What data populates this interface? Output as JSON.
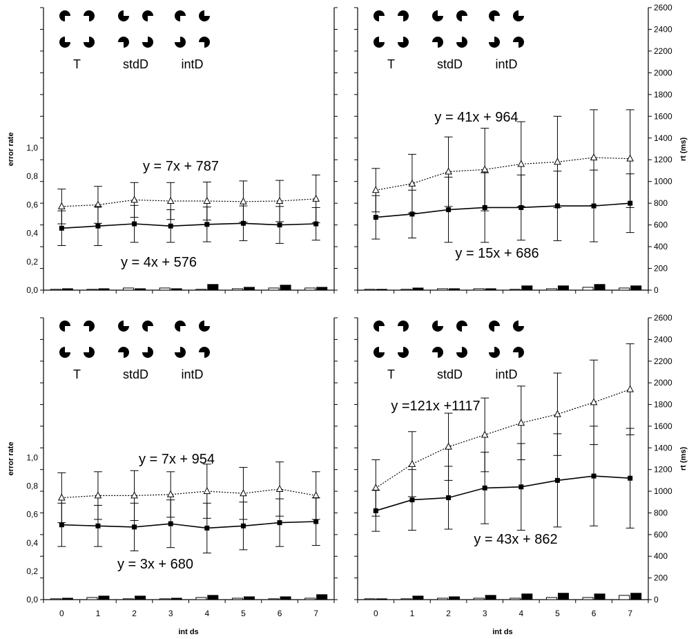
{
  "labels": {
    "error_rate": "error rate",
    "rt": "rt (ms)",
    "xlabel": "int ds"
  },
  "chart_data": [
    {
      "type": "line",
      "panel": "top-left",
      "x": [
        0,
        1,
        2,
        3,
        4,
        5,
        6,
        7
      ],
      "error_ylim": [
        0,
        1.0
      ],
      "error_ticks": [
        "0,0",
        "0,2",
        "0,4",
        "0,6",
        "0,8",
        "1,0"
      ],
      "rt_ylim": [
        0,
        2600
      ],
      "rt_ticks": [],
      "xlabel": "",
      "stimulus_labels": [
        "T",
        "stdD",
        "intD"
      ],
      "series": [
        {
          "kind": "rt-line",
          "style": "dotted",
          "marker": "open-triangle",
          "values": [
            770,
            785,
            830,
            820,
            820,
            815,
            820,
            840
          ],
          "error": [
            160,
            170,
            160,
            170,
            175,
            190,
            190,
            220
          ]
        },
        {
          "kind": "rt-line",
          "style": "solid",
          "marker": "filled-square",
          "values": [
            570,
            590,
            610,
            590,
            605,
            615,
            600,
            610
          ],
          "error": [
            160,
            180,
            170,
            150,
            160,
            160,
            170,
            150
          ]
        },
        {
          "kind": "error-bar",
          "fill": "open",
          "values": [
            0.005,
            0.005,
            0.015,
            0.015,
            0.005,
            0.01,
            0.015,
            0.015
          ]
        },
        {
          "kind": "error-bar",
          "fill": "filled",
          "values": [
            0.01,
            0.01,
            0.01,
            0.01,
            0.04,
            0.02,
            0.035,
            0.02
          ]
        }
      ],
      "equations": [
        "y = 7x + 787",
        "y = 4x + 576"
      ]
    },
    {
      "type": "line",
      "panel": "top-right",
      "x": [
        0,
        1,
        2,
        3,
        4,
        5,
        6,
        7
      ],
      "error_ylim": [
        0,
        1.0
      ],
      "error_ticks": [],
      "rt_ylim": [
        0,
        2600
      ],
      "rt_ticks": [
        "0",
        "200",
        "400",
        "600",
        "800",
        "1000",
        "1200",
        "1400",
        "1600",
        "1800",
        "2000",
        "2200",
        "2400",
        "2600"
      ],
      "ylabel_right": "rt (ms)",
      "xlabel": "",
      "stimulus_labels": [
        "T",
        "stdD",
        "intD"
      ],
      "series": [
        {
          "kind": "rt-line",
          "style": "dotted",
          "marker": "open-triangle",
          "values": [
            920,
            980,
            1090,
            1110,
            1160,
            1180,
            1220,
            1210
          ],
          "error": [
            200,
            270,
            320,
            380,
            390,
            420,
            440,
            450
          ]
        },
        {
          "kind": "rt-line",
          "style": "solid",
          "marker": "filled-square",
          "values": [
            670,
            700,
            740,
            760,
            760,
            775,
            775,
            800
          ],
          "error": [
            200,
            220,
            300,
            320,
            300,
            320,
            330,
            270
          ]
        },
        {
          "kind": "error-bar",
          "fill": "open",
          "values": [
            0.003,
            0.005,
            0.01,
            0.01,
            0.003,
            0.01,
            0.02,
            0.015
          ]
        },
        {
          "kind": "error-bar",
          "fill": "filled",
          "values": [
            0.005,
            0.015,
            0.01,
            0.01,
            0.03,
            0.03,
            0.04,
            0.03
          ]
        }
      ],
      "equations": [
        "y = 41x + 964",
        "y = 15x + 686"
      ]
    },
    {
      "type": "line",
      "panel": "bottom-left",
      "x": [
        0,
        1,
        2,
        3,
        4,
        5,
        6,
        7
      ],
      "error_ylim": [
        0,
        1.0
      ],
      "error_ticks": [
        "0,0",
        "0,2",
        "0,4",
        "0,6",
        "0,8",
        "1,0"
      ],
      "rt_ylim": [
        0,
        2600
      ],
      "rt_ticks": [],
      "ylabel_left": "error rate",
      "xlabel": "int ds",
      "x_ticks": [
        "0",
        "1",
        "2",
        "3",
        "4",
        "5",
        "6",
        "7"
      ],
      "stimulus_labels": [
        "T",
        "stdD",
        "intD"
      ],
      "series": [
        {
          "kind": "rt-line",
          "style": "dotted",
          "marker": "open-triangle",
          "values": [
            940,
            960,
            960,
            970,
            1000,
            980,
            1020,
            960
          ],
          "error": [
            230,
            220,
            230,
            210,
            250,
            240,
            250,
            220
          ]
        },
        {
          "kind": "rt-line",
          "style": "solid",
          "marker": "filled-square",
          "values": [
            690,
            680,
            670,
            700,
            660,
            680,
            710,
            720
          ],
          "error": [
            200,
            190,
            220,
            220,
            230,
            220,
            220,
            220
          ]
        },
        {
          "kind": "error-bar",
          "fill": "open",
          "values": [
            0.005,
            0.015,
            0.005,
            0.005,
            0.015,
            0.01,
            0.005,
            0.01
          ]
        },
        {
          "kind": "error-bar",
          "fill": "filled",
          "values": [
            0.01,
            0.025,
            0.025,
            0.01,
            0.03,
            0.02,
            0.02,
            0.035
          ]
        }
      ],
      "equations": [
        "y = 7x + 954",
        "y = 3x + 680"
      ]
    },
    {
      "type": "line",
      "panel": "bottom-right",
      "x": [
        0,
        1,
        2,
        3,
        4,
        5,
        6,
        7
      ],
      "error_ylim": [
        0,
        1.0
      ],
      "error_ticks": [],
      "rt_ylim": [
        0,
        2600
      ],
      "rt_ticks": [
        "0",
        "200",
        "400",
        "600",
        "800",
        "1000",
        "1200",
        "1400",
        "1600",
        "1800",
        "2000",
        "2200",
        "2400",
        "2600"
      ],
      "ylabel_right": "rt (ms)",
      "xlabel": "int ds",
      "x_ticks": [
        "0",
        "1",
        "2",
        "3",
        "4",
        "5",
        "6",
        "7"
      ],
      "stimulus_labels": [
        "T",
        "stdD",
        "intD"
      ],
      "series": [
        {
          "kind": "rt-line",
          "style": "dotted",
          "marker": "open-triangle",
          "values": [
            1030,
            1250,
            1410,
            1520,
            1630,
            1710,
            1820,
            1940
          ],
          "error": [
            260,
            300,
            310,
            340,
            340,
            380,
            390,
            420
          ]
        },
        {
          "kind": "rt-line",
          "style": "solid",
          "marker": "filled-square",
          "values": [
            820,
            920,
            940,
            1030,
            1040,
            1100,
            1140,
            1120
          ],
          "error": [
            190,
            280,
            290,
            330,
            400,
            430,
            460,
            460
          ]
        },
        {
          "kind": "error-bar",
          "fill": "open",
          "values": [
            0.003,
            0.005,
            0.01,
            0.01,
            0.01,
            0.015,
            0.015,
            0.03
          ]
        },
        {
          "kind": "error-bar",
          "fill": "filled",
          "values": [
            0.005,
            0.025,
            0.02,
            0.03,
            0.04,
            0.045,
            0.04,
            0.045
          ]
        }
      ],
      "equations": [
        "y =121x +1117",
        "y = 43x + 862"
      ]
    }
  ]
}
